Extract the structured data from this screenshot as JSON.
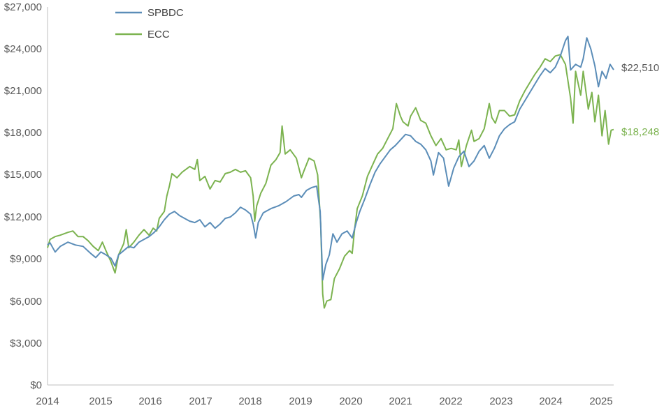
{
  "chart_data": {
    "type": "line",
    "title": "",
    "xlabel": "",
    "ylabel": "",
    "xlim": [
      2014.0,
      2025.15
    ],
    "ylim": [
      0,
      27000
    ],
    "grid": false,
    "legend_position": "top-left",
    "x_tick_labels": [
      "2014",
      "2015",
      "2016",
      "2017",
      "2018",
      "2019",
      "2020",
      "2021",
      "2022",
      "2023",
      "2024",
      "2025"
    ],
    "y_tick_labels": [
      "$0",
      "$3,000",
      "$6,000",
      "$9,000",
      "$12,000",
      "$15,000",
      "$18,000",
      "$21,000",
      "$24,000",
      "$27,000"
    ],
    "series": [
      {
        "name": "SPBDC",
        "color": "#5b8db8",
        "end_label": "$22,510",
        "points": [
          [
            2014.0,
            10000
          ],
          [
            2014.05,
            10150
          ],
          [
            2014.15,
            9500
          ],
          [
            2014.25,
            9900
          ],
          [
            2014.4,
            10200
          ],
          [
            2014.55,
            10000
          ],
          [
            2014.7,
            9900
          ],
          [
            2014.85,
            9400
          ],
          [
            2014.95,
            9100
          ],
          [
            2015.05,
            9500
          ],
          [
            2015.15,
            9300
          ],
          [
            2015.25,
            9050
          ],
          [
            2015.33,
            8500
          ],
          [
            2015.4,
            9300
          ],
          [
            2015.5,
            9600
          ],
          [
            2015.6,
            9900
          ],
          [
            2015.7,
            9800
          ],
          [
            2015.8,
            10200
          ],
          [
            2015.9,
            10400
          ],
          [
            2016.0,
            10600
          ],
          [
            2016.1,
            10900
          ],
          [
            2016.2,
            11300
          ],
          [
            2016.3,
            11800
          ],
          [
            2016.4,
            12200
          ],
          [
            2016.5,
            12400
          ],
          [
            2016.6,
            12100
          ],
          [
            2016.7,
            11900
          ],
          [
            2016.8,
            11700
          ],
          [
            2016.9,
            11600
          ],
          [
            2017.0,
            11800
          ],
          [
            2017.1,
            11300
          ],
          [
            2017.2,
            11600
          ],
          [
            2017.3,
            11200
          ],
          [
            2017.4,
            11500
          ],
          [
            2017.5,
            11900
          ],
          [
            2017.6,
            12000
          ],
          [
            2017.7,
            12300
          ],
          [
            2017.8,
            12700
          ],
          [
            2017.9,
            12500
          ],
          [
            2018.0,
            12200
          ],
          [
            2018.05,
            11500
          ],
          [
            2018.1,
            10500
          ],
          [
            2018.15,
            11600
          ],
          [
            2018.25,
            12300
          ],
          [
            2018.4,
            12600
          ],
          [
            2018.55,
            12800
          ],
          [
            2018.7,
            13100
          ],
          [
            2018.85,
            13500
          ],
          [
            2018.95,
            13600
          ],
          [
            2019.0,
            13400
          ],
          [
            2019.1,
            13900
          ],
          [
            2019.2,
            14100
          ],
          [
            2019.3,
            14200
          ],
          [
            2019.37,
            12400
          ],
          [
            2019.42,
            7500
          ],
          [
            2019.48,
            8600
          ],
          [
            2019.55,
            9300
          ],
          [
            2019.62,
            10800
          ],
          [
            2019.7,
            10200
          ],
          [
            2019.8,
            10800
          ],
          [
            2019.9,
            11000
          ],
          [
            2020.0,
            10500
          ],
          [
            2020.08,
            11600
          ],
          [
            2020.15,
            12400
          ],
          [
            2020.25,
            13300
          ],
          [
            2020.35,
            14300
          ],
          [
            2020.45,
            15200
          ],
          [
            2020.55,
            15800
          ],
          [
            2020.65,
            16300
          ],
          [
            2020.75,
            16800
          ],
          [
            2020.85,
            17100
          ],
          [
            2020.95,
            17500
          ],
          [
            2021.05,
            17900
          ],
          [
            2021.15,
            17800
          ],
          [
            2021.25,
            17400
          ],
          [
            2021.35,
            17200
          ],
          [
            2021.45,
            16800
          ],
          [
            2021.55,
            16000
          ],
          [
            2021.6,
            15000
          ],
          [
            2021.7,
            16600
          ],
          [
            2021.8,
            16200
          ],
          [
            2021.9,
            14200
          ],
          [
            2022.0,
            15500
          ],
          [
            2022.1,
            16300
          ],
          [
            2022.2,
            16700
          ],
          [
            2022.3,
            15600
          ],
          [
            2022.4,
            16000
          ],
          [
            2022.5,
            16700
          ],
          [
            2022.6,
            17100
          ],
          [
            2022.7,
            16200
          ],
          [
            2022.8,
            16900
          ],
          [
            2022.9,
            17800
          ],
          [
            2023.0,
            18300
          ],
          [
            2023.1,
            18600
          ],
          [
            2023.2,
            18800
          ],
          [
            2023.3,
            19700
          ],
          [
            2023.4,
            20300
          ],
          [
            2023.5,
            20900
          ],
          [
            2023.6,
            21500
          ],
          [
            2023.7,
            22100
          ],
          [
            2023.8,
            22600
          ],
          [
            2023.9,
            22300
          ],
          [
            2024.0,
            22700
          ],
          [
            2024.1,
            23500
          ],
          [
            2024.2,
            24600
          ],
          [
            2024.25,
            24900
          ],
          [
            2024.3,
            22500
          ],
          [
            2024.4,
            22900
          ],
          [
            2024.5,
            22700
          ],
          [
            2024.55,
            23300
          ],
          [
            2024.62,
            24800
          ],
          [
            2024.7,
            24000
          ],
          [
            2024.78,
            22800
          ],
          [
            2024.85,
            21300
          ],
          [
            2024.92,
            22400
          ],
          [
            2025.0,
            21900
          ],
          [
            2025.08,
            22900
          ],
          [
            2025.15,
            22510
          ]
        ]
      },
      {
        "name": "ECC",
        "color": "#7cb350",
        "end_label": "$18,248",
        "points": [
          [
            2014.0,
            9800
          ],
          [
            2014.05,
            10400
          ],
          [
            2014.15,
            10600
          ],
          [
            2014.25,
            10700
          ],
          [
            2014.4,
            10900
          ],
          [
            2014.5,
            11000
          ],
          [
            2014.6,
            10600
          ],
          [
            2014.7,
            10600
          ],
          [
            2014.8,
            10300
          ],
          [
            2014.9,
            9900
          ],
          [
            2015.0,
            9600
          ],
          [
            2015.08,
            10200
          ],
          [
            2015.15,
            9600
          ],
          [
            2015.25,
            8800
          ],
          [
            2015.33,
            8000
          ],
          [
            2015.4,
            9300
          ],
          [
            2015.5,
            10100
          ],
          [
            2015.55,
            11100
          ],
          [
            2015.6,
            9800
          ],
          [
            2015.7,
            10200
          ],
          [
            2015.8,
            10700
          ],
          [
            2015.9,
            11100
          ],
          [
            2016.0,
            10700
          ],
          [
            2016.08,
            11200
          ],
          [
            2016.15,
            11000
          ],
          [
            2016.2,
            11900
          ],
          [
            2016.3,
            12400
          ],
          [
            2016.35,
            13500
          ],
          [
            2016.4,
            14200
          ],
          [
            2016.45,
            15100
          ],
          [
            2016.55,
            14800
          ],
          [
            2016.65,
            15200
          ],
          [
            2016.8,
            15600
          ],
          [
            2016.9,
            15400
          ],
          [
            2016.95,
            16100
          ],
          [
            2017.0,
            14600
          ],
          [
            2017.1,
            14900
          ],
          [
            2017.2,
            14000
          ],
          [
            2017.3,
            14600
          ],
          [
            2017.4,
            14500
          ],
          [
            2017.5,
            15100
          ],
          [
            2017.6,
            15200
          ],
          [
            2017.7,
            15400
          ],
          [
            2017.8,
            15200
          ],
          [
            2017.9,
            15300
          ],
          [
            2018.0,
            14800
          ],
          [
            2018.05,
            13500
          ],
          [
            2018.08,
            11700
          ],
          [
            2018.12,
            12800
          ],
          [
            2018.2,
            13700
          ],
          [
            2018.3,
            14400
          ],
          [
            2018.4,
            15700
          ],
          [
            2018.5,
            16100
          ],
          [
            2018.58,
            16600
          ],
          [
            2018.62,
            18500
          ],
          [
            2018.68,
            16500
          ],
          [
            2018.78,
            16800
          ],
          [
            2018.9,
            16200
          ],
          [
            2018.95,
            15500
          ],
          [
            2019.0,
            14800
          ],
          [
            2019.05,
            15300
          ],
          [
            2019.15,
            16200
          ],
          [
            2019.25,
            16000
          ],
          [
            2019.32,
            15000
          ],
          [
            2019.38,
            11500
          ],
          [
            2019.42,
            6500
          ],
          [
            2019.45,
            5500
          ],
          [
            2019.5,
            6000
          ],
          [
            2019.58,
            6100
          ],
          [
            2019.65,
            7600
          ],
          [
            2019.75,
            8300
          ],
          [
            2019.85,
            9200
          ],
          [
            2019.95,
            9600
          ],
          [
            2020.0,
            9400
          ],
          [
            2020.05,
            11200
          ],
          [
            2020.1,
            12600
          ],
          [
            2020.2,
            13500
          ],
          [
            2020.3,
            14900
          ],
          [
            2020.4,
            15700
          ],
          [
            2020.5,
            16500
          ],
          [
            2020.6,
            16900
          ],
          [
            2020.7,
            17600
          ],
          [
            2020.8,
            18300
          ],
          [
            2020.87,
            20100
          ],
          [
            2020.95,
            19200
          ],
          [
            2021.0,
            18800
          ],
          [
            2021.1,
            18500
          ],
          [
            2021.15,
            19200
          ],
          [
            2021.25,
            19800
          ],
          [
            2021.35,
            18900
          ],
          [
            2021.45,
            18700
          ],
          [
            2021.55,
            17800
          ],
          [
            2021.65,
            17100
          ],
          [
            2021.75,
            17600
          ],
          [
            2021.85,
            16800
          ],
          [
            2021.95,
            16900
          ],
          [
            2022.05,
            16800
          ],
          [
            2022.1,
            17500
          ],
          [
            2022.15,
            15600
          ],
          [
            2022.25,
            17100
          ],
          [
            2022.35,
            18200
          ],
          [
            2022.4,
            17400
          ],
          [
            2022.5,
            17600
          ],
          [
            2022.6,
            18300
          ],
          [
            2022.65,
            19200
          ],
          [
            2022.7,
            20100
          ],
          [
            2022.75,
            19100
          ],
          [
            2022.82,
            18700
          ],
          [
            2022.9,
            19600
          ],
          [
            2023.0,
            19600
          ],
          [
            2023.1,
            19200
          ],
          [
            2023.2,
            19300
          ],
          [
            2023.3,
            20300
          ],
          [
            2023.4,
            21000
          ],
          [
            2023.5,
            21600
          ],
          [
            2023.6,
            22200
          ],
          [
            2023.7,
            22700
          ],
          [
            2023.8,
            23300
          ],
          [
            2023.9,
            23100
          ],
          [
            2024.0,
            23500
          ],
          [
            2024.1,
            23600
          ],
          [
            2024.2,
            22900
          ],
          [
            2024.3,
            20500
          ],
          [
            2024.35,
            18700
          ],
          [
            2024.4,
            22400
          ],
          [
            2024.5,
            20700
          ],
          [
            2024.55,
            22400
          ],
          [
            2024.65,
            19700
          ],
          [
            2024.72,
            20900
          ],
          [
            2024.78,
            18800
          ],
          [
            2024.85,
            20700
          ],
          [
            2024.92,
            17800
          ],
          [
            2024.98,
            19600
          ],
          [
            2025.05,
            17200
          ],
          [
            2025.1,
            18200
          ],
          [
            2025.15,
            18248
          ]
        ]
      }
    ]
  }
}
